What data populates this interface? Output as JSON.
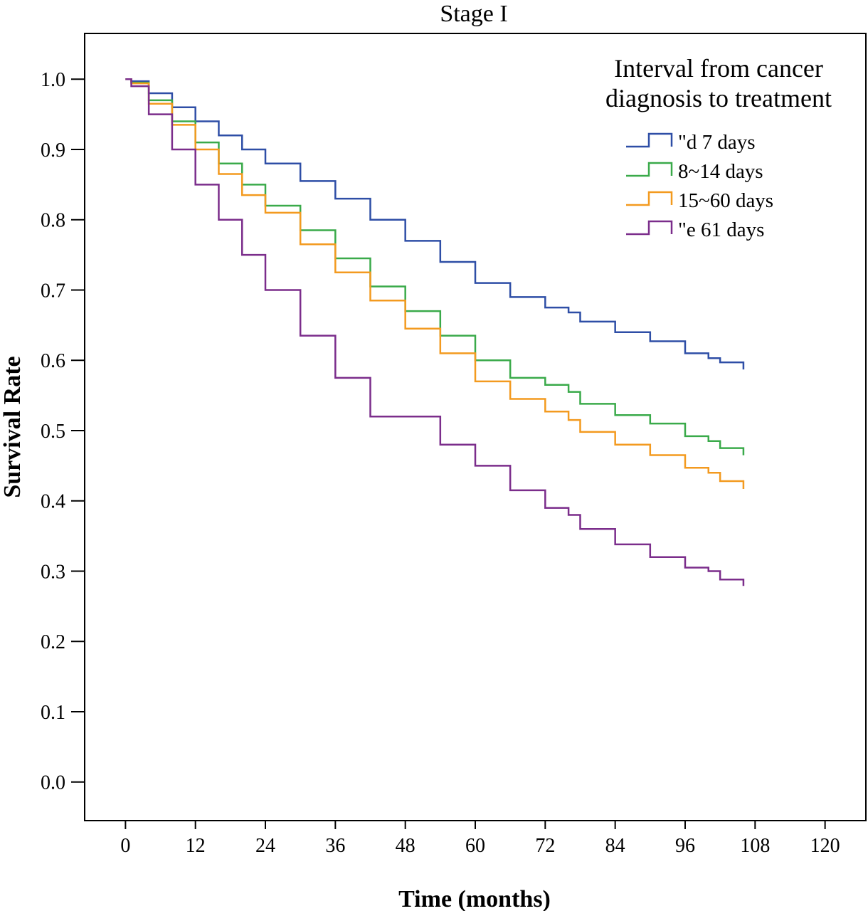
{
  "chart_data": {
    "type": "line",
    "title": "Stage I",
    "xlabel": "Time (months)",
    "ylabel": "Survival Rate",
    "xlim": [
      -7,
      127
    ],
    "ylim": [
      -0.055,
      1.065
    ],
    "x_ticks": [
      0,
      12,
      24,
      36,
      48,
      60,
      72,
      84,
      96,
      108,
      120
    ],
    "y_ticks": [
      0.0,
      0.1,
      0.2,
      0.3,
      0.4,
      0.5,
      0.6,
      0.7,
      0.8,
      0.9,
      1.0
    ],
    "x_tick_labels": [
      "0",
      "12",
      "24",
      "36",
      "48",
      "60",
      "72",
      "84",
      "96",
      "108",
      "120"
    ],
    "y_tick_labels": [
      "0.0",
      "0.1",
      "0.2",
      "0.3",
      "0.4",
      "0.5",
      "0.6",
      "0.7",
      "0.8",
      "0.9",
      "1.0"
    ],
    "grid": false,
    "legend": {
      "title_line1": "Interval from cancer",
      "title_line2": "diagnosis to treatment",
      "placement": "top-right"
    },
    "series": [
      {
        "name": "\"d 7 days",
        "color": "#2e4ea6",
        "x": [
          0,
          1,
          4,
          8,
          12,
          16,
          20,
          24,
          30,
          36,
          42,
          48,
          54,
          60,
          66,
          72,
          76,
          78,
          84,
          90,
          96,
          100,
          102,
          106
        ],
        "y": [
          1.0,
          0.997,
          0.98,
          0.96,
          0.94,
          0.92,
          0.9,
          0.88,
          0.855,
          0.83,
          0.8,
          0.77,
          0.74,
          0.71,
          0.69,
          0.675,
          0.668,
          0.655,
          0.64,
          0.627,
          0.61,
          0.603,
          0.597,
          0.595
        ]
      },
      {
        "name": "8~14 days",
        "color": "#3aaa4a",
        "x": [
          0,
          1,
          4,
          8,
          12,
          16,
          20,
          24,
          30,
          36,
          42,
          48,
          54,
          60,
          66,
          72,
          76,
          78,
          84,
          90,
          96,
          100,
          102,
          106
        ],
        "y": [
          1.0,
          0.995,
          0.97,
          0.94,
          0.91,
          0.88,
          0.85,
          0.82,
          0.785,
          0.745,
          0.705,
          0.67,
          0.635,
          0.6,
          0.575,
          0.565,
          0.555,
          0.538,
          0.522,
          0.51,
          0.492,
          0.485,
          0.475,
          0.473
        ]
      },
      {
        "name": "15~60 days",
        "color": "#f39a1f",
        "x": [
          0,
          1,
          4,
          8,
          12,
          16,
          20,
          24,
          30,
          36,
          42,
          48,
          54,
          60,
          66,
          72,
          76,
          78,
          84,
          90,
          96,
          100,
          102,
          106
        ],
        "y": [
          1.0,
          0.994,
          0.965,
          0.935,
          0.9,
          0.865,
          0.835,
          0.81,
          0.765,
          0.725,
          0.685,
          0.645,
          0.61,
          0.57,
          0.545,
          0.527,
          0.515,
          0.498,
          0.48,
          0.465,
          0.447,
          0.44,
          0.428,
          0.425
        ]
      },
      {
        "name": "\"e 61 days",
        "color": "#7b2d8b",
        "x": [
          0,
          1,
          4,
          8,
          12,
          16,
          20,
          24,
          30,
          36,
          42,
          48,
          54,
          60,
          66,
          72,
          76,
          78,
          84,
          90,
          96,
          100,
          102,
          106
        ],
        "y": [
          1.0,
          0.99,
          0.95,
          0.9,
          0.85,
          0.8,
          0.75,
          0.7,
          0.635,
          0.575,
          0.52,
          0.52,
          0.48,
          0.45,
          0.415,
          0.39,
          0.38,
          0.36,
          0.338,
          0.32,
          0.305,
          0.3,
          0.288,
          0.287
        ]
      }
    ]
  }
}
